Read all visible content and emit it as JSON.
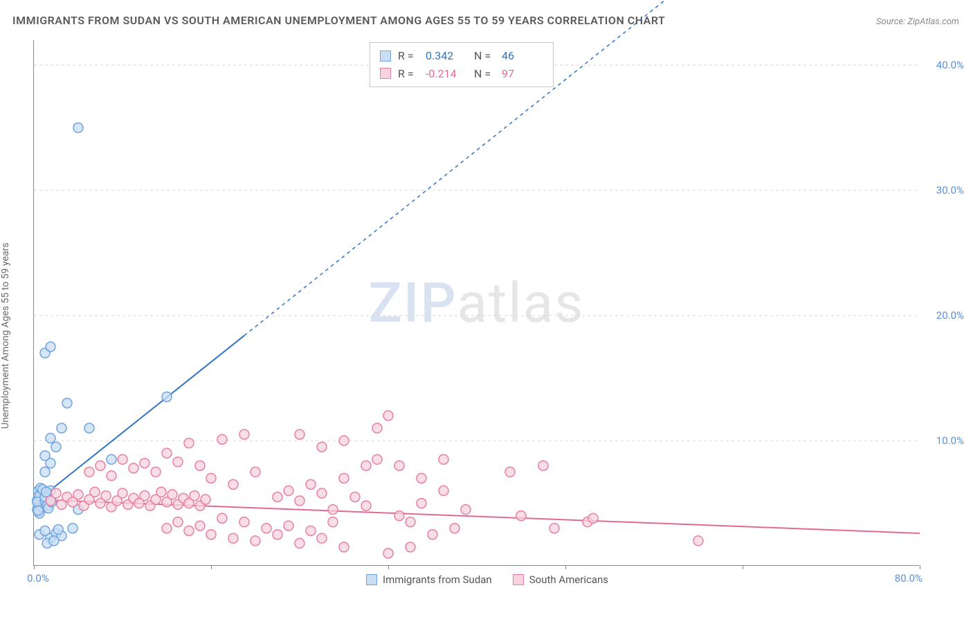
{
  "title": "IMMIGRANTS FROM SUDAN VS SOUTH AMERICAN UNEMPLOYMENT AMONG AGES 55 TO 59 YEARS CORRELATION CHART",
  "source": "Source: ZipAtlas.com",
  "y_axis_label": "Unemployment Among Ages 55 to 59 years",
  "watermark": {
    "part1": "ZIP",
    "part2": "atlas"
  },
  "chart": {
    "type": "scatter",
    "plot_bg": "#ffffff",
    "grid_color": "#d8d8d8",
    "axis_color": "#888888",
    "tick_label_color": "#5b8fd6",
    "x_range": [
      0,
      80
    ],
    "y_range": [
      0,
      42
    ],
    "x_ticks": [
      0,
      16,
      32,
      48,
      64,
      80
    ],
    "x_tick_labels": [
      "0.0%",
      "",
      "",
      "",
      "",
      "80.0%"
    ],
    "y_ticks": [
      10,
      20,
      30,
      40
    ],
    "y_tick_labels": [
      "10.0%",
      "20.0%",
      "30.0%",
      "40.0%"
    ],
    "marker_radius": 7,
    "marker_stroke_width": 1.5,
    "line_width": 2
  },
  "series": [
    {
      "id": "sudan",
      "label": "Immigrants from Sudan",
      "fill": "#c9ddf4",
      "stroke": "#6ea3e0",
      "line_color": "#2f73c4",
      "R": "0.342",
      "N": "46",
      "trend": {
        "x1": 0,
        "y1": 5.0,
        "x2": 78,
        "y2": 60,
        "solid_until_x": 19
      },
      "points": [
        [
          0.3,
          5.2
        ],
        [
          0.5,
          4.8
        ],
        [
          0.6,
          5.5
        ],
        [
          0.4,
          6.0
        ],
        [
          0.8,
          5.0
        ],
        [
          0.5,
          4.2
        ],
        [
          0.7,
          5.8
        ],
        [
          0.3,
          4.5
        ],
        [
          0.6,
          6.2
        ],
        [
          0.4,
          5.3
        ],
        [
          0.9,
          4.9
        ],
        [
          0.5,
          5.6
        ],
        [
          0.7,
          4.7
        ],
        [
          0.3,
          5.1
        ],
        [
          0.8,
          6.1
        ],
        [
          0.4,
          4.4
        ],
        [
          1.0,
          5.2
        ],
        [
          1.2,
          4.8
        ],
        [
          1.5,
          6.0
        ],
        [
          1.0,
          5.5
        ],
        [
          1.3,
          4.6
        ],
        [
          1.1,
          5.9
        ],
        [
          1.6,
          5.1
        ],
        [
          0.5,
          2.5
        ],
        [
          1.0,
          2.8
        ],
        [
          1.5,
          2.2
        ],
        [
          2.0,
          2.6
        ],
        [
          2.5,
          2.4
        ],
        [
          1.2,
          1.8
        ],
        [
          1.8,
          2.0
        ],
        [
          2.2,
          2.9
        ],
        [
          1.0,
          7.5
        ],
        [
          1.5,
          8.2
        ],
        [
          1.0,
          8.8
        ],
        [
          2.0,
          9.5
        ],
        [
          1.5,
          10.2
        ],
        [
          2.5,
          11.0
        ],
        [
          1.0,
          17.0
        ],
        [
          1.5,
          17.5
        ],
        [
          3.0,
          13.0
        ],
        [
          4.0,
          35.0
        ],
        [
          5.0,
          11.0
        ],
        [
          7.0,
          8.5
        ],
        [
          12.0,
          13.5
        ],
        [
          4.0,
          4.5
        ],
        [
          3.5,
          3.0
        ]
      ]
    },
    {
      "id": "south_american",
      "label": "South Americans",
      "fill": "#f8d3dd",
      "stroke": "#e97fa0",
      "line_color": "#e36a8f",
      "R": "-0.214",
      "N": "97",
      "trend": {
        "x1": 0,
        "y1": 5.3,
        "x2": 80,
        "y2": 2.6,
        "solid_until_x": 80
      },
      "points": [
        [
          1.5,
          5.2
        ],
        [
          2.0,
          5.8
        ],
        [
          2.5,
          4.9
        ],
        [
          3.0,
          5.5
        ],
        [
          3.5,
          5.1
        ],
        [
          4.0,
          5.7
        ],
        [
          4.5,
          4.8
        ],
        [
          5.0,
          5.3
        ],
        [
          5.5,
          5.9
        ],
        [
          6.0,
          5.0
        ],
        [
          6.5,
          5.6
        ],
        [
          7.0,
          4.7
        ],
        [
          7.5,
          5.2
        ],
        [
          8.0,
          5.8
        ],
        [
          8.5,
          4.9
        ],
        [
          9.0,
          5.4
        ],
        [
          9.5,
          5.0
        ],
        [
          10.0,
          5.6
        ],
        [
          10.5,
          4.8
        ],
        [
          11.0,
          5.3
        ],
        [
          11.5,
          5.9
        ],
        [
          12.0,
          5.1
        ],
        [
          12.5,
          5.7
        ],
        [
          13.0,
          4.9
        ],
        [
          13.5,
          5.4
        ],
        [
          14.0,
          5.0
        ],
        [
          14.5,
          5.6
        ],
        [
          15.0,
          4.8
        ],
        [
          15.5,
          5.3
        ],
        [
          5.0,
          7.5
        ],
        [
          6.0,
          8.0
        ],
        [
          7.0,
          7.2
        ],
        [
          8.0,
          8.5
        ],
        [
          9.0,
          7.8
        ],
        [
          10.0,
          8.2
        ],
        [
          11.0,
          7.5
        ],
        [
          12.0,
          9.0
        ],
        [
          13.0,
          8.3
        ],
        [
          14.0,
          9.8
        ],
        [
          15.0,
          8.0
        ],
        [
          16.0,
          7.0
        ],
        [
          17.0,
          10.1
        ],
        [
          18.0,
          6.5
        ],
        [
          19.0,
          10.5
        ],
        [
          20.0,
          7.5
        ],
        [
          12.0,
          3.0
        ],
        [
          13.0,
          3.5
        ],
        [
          14.0,
          2.8
        ],
        [
          15.0,
          3.2
        ],
        [
          16.0,
          2.5
        ],
        [
          17.0,
          3.8
        ],
        [
          18.0,
          2.2
        ],
        [
          19.0,
          3.5
        ],
        [
          20.0,
          2.0
        ],
        [
          21.0,
          3.0
        ],
        [
          22.0,
          2.5
        ],
        [
          23.0,
          3.2
        ],
        [
          24.0,
          1.8
        ],
        [
          25.0,
          2.8
        ],
        [
          26.0,
          2.2
        ],
        [
          27.0,
          3.5
        ],
        [
          28.0,
          1.5
        ],
        [
          22.0,
          5.5
        ],
        [
          23.0,
          6.0
        ],
        [
          24.0,
          5.2
        ],
        [
          25.0,
          6.5
        ],
        [
          26.0,
          5.8
        ],
        [
          27.0,
          4.5
        ],
        [
          28.0,
          7.0
        ],
        [
          29.0,
          5.5
        ],
        [
          30.0,
          4.8
        ],
        [
          24.0,
          10.5
        ],
        [
          26.0,
          9.5
        ],
        [
          28.0,
          10.0
        ],
        [
          30.0,
          8.0
        ],
        [
          31.0,
          11.0
        ],
        [
          32.0,
          12.0
        ],
        [
          33.0,
          4.0
        ],
        [
          34.0,
          3.5
        ],
        [
          35.0,
          5.0
        ],
        [
          36.0,
          2.5
        ],
        [
          37.0,
          6.0
        ],
        [
          38.0,
          3.0
        ],
        [
          31.0,
          8.5
        ],
        [
          33.0,
          8.0
        ],
        [
          35.0,
          7.0
        ],
        [
          37.0,
          8.5
        ],
        [
          39.0,
          4.5
        ],
        [
          32.0,
          1.0
        ],
        [
          34.0,
          1.5
        ],
        [
          43.0,
          7.5
        ],
        [
          44.0,
          4.0
        ],
        [
          47.0,
          3.0
        ],
        [
          46.0,
          8.0
        ],
        [
          50.0,
          3.5
        ],
        [
          50.5,
          3.8
        ],
        [
          60.0,
          2.0
        ]
      ]
    }
  ],
  "stats_box": {
    "R_label": "R =",
    "N_label": "N ="
  }
}
